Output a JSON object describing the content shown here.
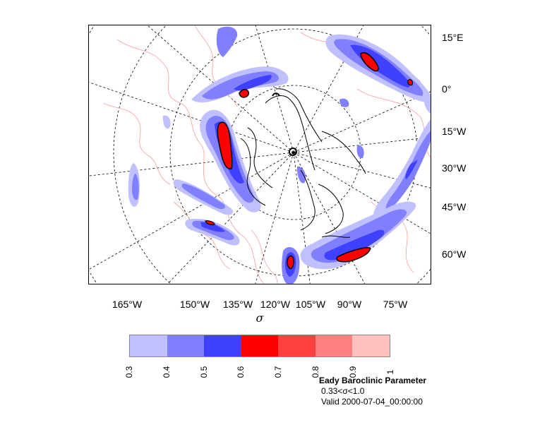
{
  "title": "Eady Baroclinic Parameter",
  "subtitle": "0.33<σ<1.0",
  "valid_time": "Valid 2000-07-04_00:00:00",
  "axis_label": "σ",
  "lon_ticks": [
    "165°W",
    "150°W",
    "135°W",
    "120°W",
    "105°W",
    "90°W",
    "75°W"
  ],
  "lat_ticks": [
    "15°E",
    "0°",
    "15°W",
    "30°W",
    "45°W",
    "60°W"
  ],
  "colorbar": {
    "levels": [
      "0.3",
      "0.4",
      "0.5",
      "0.6",
      "0.7",
      "0.8",
      "0.9",
      "1"
    ],
    "colors": [
      "#c0c0ff",
      "#8080ff",
      "#4040ff",
      "#ff0000",
      "#ff4040",
      "#ff8080",
      "#ffc0c0"
    ]
  },
  "map_colors": {
    "coastline": "#f0a0a0",
    "contour": "#000000",
    "graticule": "#000000"
  }
}
